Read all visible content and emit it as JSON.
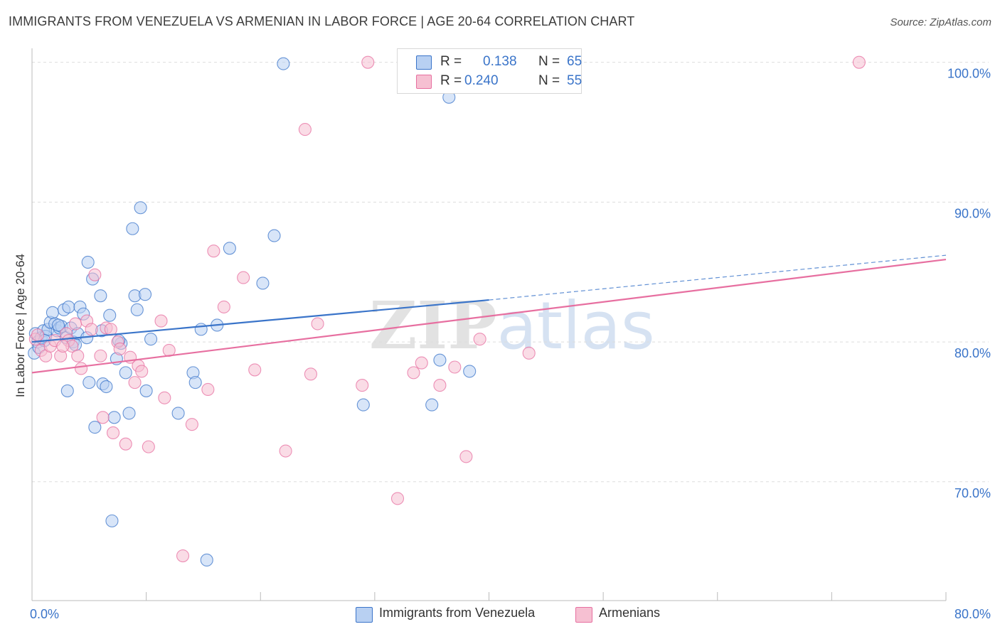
{
  "title": "IMMIGRANTS FROM VENEZUELA VS ARMENIAN IN LABOR FORCE | AGE 20-64 CORRELATION CHART",
  "source": "Source: ZipAtlas.com",
  "colors": {
    "blue": "#3a74c9",
    "blue_fill": "#b8d0f2",
    "pink": "#e76fa0",
    "pink_fill": "#f6c0d2",
    "grid": "#dddddd",
    "axis_label": "#3a74c9"
  },
  "watermark": "ZIPatlas",
  "legend": {
    "rows": [
      {
        "r_label": "R =",
        "r_value": "0.138",
        "n_label": "N =",
        "n_value": "65",
        "series": "blue"
      },
      {
        "r_label": "R =",
        "r_value": "0.240",
        "n_label": "N =",
        "n_value": "55",
        "series": "pink"
      }
    ]
  },
  "bottom_legend": [
    {
      "label": "Immigrants from Venezuela",
      "series": "blue"
    },
    {
      "label": "Armenians",
      "series": "pink"
    }
  ],
  "chart_data": {
    "type": "scatter",
    "title": "IMMIGRANTS FROM VENEZUELA VS ARMENIAN IN LABOR FORCE | AGE 20-64 CORRELATION CHART",
    "xlabel": "",
    "ylabel": "In Labor Force | Age 20-64",
    "xlim": [
      0,
      80
    ],
    "ylim": [
      61.5,
      101
    ],
    "x_tick_labels": [
      {
        "value": 0,
        "label": "0.0%"
      },
      {
        "value": 80,
        "label": "80.0%"
      }
    ],
    "y_tick_labels": [
      {
        "value": 100,
        "label": "100.0%"
      },
      {
        "value": 90,
        "label": "90.0%"
      },
      {
        "value": 80,
        "label": "80.0%"
      },
      {
        "value": 70,
        "label": "70.0%"
      }
    ],
    "series": [
      {
        "name": "Immigrants from Venezuela",
        "color": "blue",
        "r": 0.138,
        "n": 65,
        "trend": {
          "x0": 0,
          "y0": 80.0,
          "x1": 40,
          "y1": 83.0,
          "dash_to_x": 80,
          "dash_to_y": 86.2
        },
        "points": [
          [
            0.2,
            79.2
          ],
          [
            0.3,
            80.6
          ],
          [
            0.5,
            80.0
          ],
          [
            0.6,
            79.6
          ],
          [
            0.8,
            80.3
          ],
          [
            1.0,
            80.8
          ],
          [
            1.2,
            80.4
          ],
          [
            1.4,
            80.9
          ],
          [
            1.6,
            81.4
          ],
          [
            1.8,
            82.1
          ],
          [
            2.0,
            81.3
          ],
          [
            2.2,
            80.8
          ],
          [
            2.4,
            81.0
          ],
          [
            2.6,
            81.1
          ],
          [
            2.8,
            82.3
          ],
          [
            3.0,
            80.3
          ],
          [
            3.2,
            82.5
          ],
          [
            3.4,
            81.0
          ],
          [
            3.6,
            80.0
          ],
          [
            3.8,
            79.8
          ],
          [
            4.0,
            80.6
          ],
          [
            4.2,
            82.5
          ],
          [
            4.5,
            82.0
          ],
          [
            4.8,
            80.3
          ],
          [
            4.9,
            85.7
          ],
          [
            5.0,
            77.1
          ],
          [
            5.3,
            84.5
          ],
          [
            5.5,
            73.9
          ],
          [
            6.0,
            83.3
          ],
          [
            6.2,
            77.0
          ],
          [
            6.5,
            76.8
          ],
          [
            6.8,
            81.9
          ],
          [
            7.0,
            67.2
          ],
          [
            7.2,
            74.6
          ],
          [
            7.4,
            78.8
          ],
          [
            7.8,
            79.9
          ],
          [
            8.2,
            77.8
          ],
          [
            8.5,
            74.9
          ],
          [
            8.8,
            88.1
          ],
          [
            9.0,
            83.3
          ],
          [
            9.2,
            82.3
          ],
          [
            9.9,
            83.4
          ],
          [
            10.0,
            76.5
          ],
          [
            10.4,
            80.2
          ],
          [
            12.8,
            74.9
          ],
          [
            14.1,
            77.8
          ],
          [
            14.3,
            77.1
          ],
          [
            14.8,
            80.9
          ],
          [
            15.3,
            64.4
          ],
          [
            16.2,
            81.2
          ],
          [
            17.3,
            86.7
          ],
          [
            20.2,
            84.2
          ],
          [
            21.2,
            87.6
          ],
          [
            22.0,
            99.9
          ],
          [
            29.0,
            75.5
          ],
          [
            35.0,
            75.5
          ],
          [
            35.7,
            78.7
          ],
          [
            36.5,
            97.5
          ],
          [
            38.3,
            77.9
          ],
          [
            9.5,
            89.6
          ],
          [
            7.6,
            80.1
          ],
          [
            2.3,
            81.2
          ],
          [
            6.1,
            80.8
          ],
          [
            1.1,
            80.1
          ],
          [
            3.1,
            76.5
          ]
        ]
      },
      {
        "name": "Armenians",
        "color": "pink",
        "r": 0.24,
        "n": 55,
        "trend": {
          "x0": 0,
          "y0": 77.8,
          "x1": 80,
          "y1": 85.9
        },
        "points": [
          [
            0.3,
            80.2
          ],
          [
            0.5,
            80.5
          ],
          [
            0.8,
            79.4
          ],
          [
            1.2,
            79.0
          ],
          [
            1.6,
            79.7
          ],
          [
            2.0,
            80.1
          ],
          [
            2.5,
            79.0
          ],
          [
            3.0,
            80.6
          ],
          [
            3.2,
            80.1
          ],
          [
            3.5,
            79.7
          ],
          [
            3.8,
            81.3
          ],
          [
            4.0,
            79.0
          ],
          [
            4.3,
            78.1
          ],
          [
            4.8,
            81.5
          ],
          [
            5.2,
            80.9
          ],
          [
            5.5,
            84.8
          ],
          [
            6.0,
            79.0
          ],
          [
            6.2,
            74.6
          ],
          [
            6.5,
            81.0
          ],
          [
            6.9,
            80.9
          ],
          [
            7.1,
            73.5
          ],
          [
            7.5,
            80.0
          ],
          [
            7.7,
            79.5
          ],
          [
            8.2,
            72.7
          ],
          [
            8.6,
            78.9
          ],
          [
            9.0,
            77.1
          ],
          [
            9.3,
            78.3
          ],
          [
            9.6,
            77.9
          ],
          [
            10.2,
            72.5
          ],
          [
            11.3,
            81.5
          ],
          [
            11.6,
            76.0
          ],
          [
            12.0,
            79.4
          ],
          [
            13.2,
            64.7
          ],
          [
            14.0,
            74.1
          ],
          [
            15.4,
            76.6
          ],
          [
            15.9,
            86.5
          ],
          [
            16.8,
            82.5
          ],
          [
            18.5,
            84.6
          ],
          [
            19.5,
            78.0
          ],
          [
            22.2,
            72.2
          ],
          [
            23.9,
            95.2
          ],
          [
            24.4,
            77.7
          ],
          [
            25.0,
            81.3
          ],
          [
            28.9,
            76.9
          ],
          [
            29.4,
            100.0
          ],
          [
            32.0,
            68.8
          ],
          [
            33.4,
            77.8
          ],
          [
            34.1,
            78.5
          ],
          [
            35.7,
            76.9
          ],
          [
            37.0,
            78.2
          ],
          [
            38.0,
            71.8
          ],
          [
            39.2,
            80.2
          ],
          [
            43.5,
            79.2
          ],
          [
            72.4,
            100.0
          ],
          [
            2.7,
            79.7
          ]
        ]
      }
    ]
  }
}
